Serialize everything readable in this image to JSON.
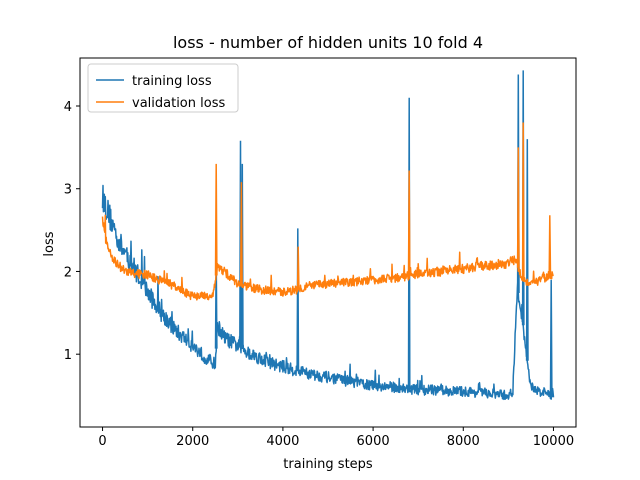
{
  "chart_data": {
    "type": "line",
    "title": "loss - number of hidden units 10 fold 4",
    "xlabel": "training steps",
    "ylabel": "loss",
    "xlim": [
      -500,
      10500
    ],
    "ylim": [
      0.12,
      4.58
    ],
    "xticks": [
      0,
      2000,
      4000,
      6000,
      8000,
      10000
    ],
    "yticks": [
      1,
      2,
      3,
      4
    ],
    "grid": false,
    "legend_position": "top-left",
    "series": [
      {
        "name": "training loss",
        "color": "#1f77b4",
        "noise": 0.09,
        "points": [
          [
            0,
            2.9
          ],
          [
            100,
            2.75
          ],
          [
            300,
            2.45
          ],
          [
            500,
            2.2
          ],
          [
            700,
            2.05
          ],
          [
            1000,
            1.75
          ],
          [
            1300,
            1.5
          ],
          [
            1600,
            1.3
          ],
          [
            2000,
            1.1
          ],
          [
            2300,
            0.95
          ],
          [
            2500,
            0.88
          ],
          [
            2550,
            1.35
          ],
          [
            2700,
            1.2
          ],
          [
            3000,
            1.1
          ],
          [
            3300,
            1.0
          ],
          [
            3700,
            0.9
          ],
          [
            4000,
            0.85
          ],
          [
            4300,
            0.8
          ],
          [
            4700,
            0.75
          ],
          [
            5000,
            0.72
          ],
          [
            5500,
            0.67
          ],
          [
            6000,
            0.62
          ],
          [
            6500,
            0.6
          ],
          [
            6780,
            0.58
          ],
          [
            7000,
            0.57
          ],
          [
            7500,
            0.56
          ],
          [
            8000,
            0.55
          ],
          [
            8500,
            0.53
          ],
          [
            9000,
            0.5
          ],
          [
            9100,
            0.55
          ],
          [
            9200,
            1.8
          ],
          [
            9300,
            1.5
          ],
          [
            9400,
            1.0
          ],
          [
            9500,
            0.6
          ],
          [
            9700,
            0.55
          ],
          [
            10000,
            0.5
          ]
        ],
        "spikes": [
          [
            2520,
            2.2
          ],
          [
            3060,
            3.58
          ],
          [
            3100,
            3.3
          ],
          [
            4330,
            2.52
          ],
          [
            6800,
            4.1
          ],
          [
            9220,
            4.38
          ],
          [
            9330,
            4.43
          ],
          [
            9420,
            3.6
          ],
          [
            9950,
            1.9
          ]
        ]
      },
      {
        "name": "validation loss",
        "color": "#ff7f0e",
        "noise": 0.04,
        "points": [
          [
            0,
            2.65
          ],
          [
            100,
            2.3
          ],
          [
            300,
            2.1
          ],
          [
            500,
            2.0
          ],
          [
            800,
            1.97
          ],
          [
            1000,
            1.95
          ],
          [
            1500,
            1.85
          ],
          [
            1800,
            1.75
          ],
          [
            2000,
            1.7
          ],
          [
            2300,
            1.7
          ],
          [
            2450,
            1.72
          ],
          [
            2550,
            2.05
          ],
          [
            2700,
            2.0
          ],
          [
            3000,
            1.85
          ],
          [
            3200,
            1.82
          ],
          [
            3500,
            1.78
          ],
          [
            4000,
            1.75
          ],
          [
            4300,
            1.78
          ],
          [
            4500,
            1.82
          ],
          [
            5000,
            1.85
          ],
          [
            5500,
            1.87
          ],
          [
            6000,
            1.9
          ],
          [
            6500,
            1.92
          ],
          [
            6800,
            1.95
          ],
          [
            7000,
            1.97
          ],
          [
            7500,
            2.0
          ],
          [
            8000,
            2.03
          ],
          [
            8500,
            2.07
          ],
          [
            9000,
            2.1
          ],
          [
            9150,
            2.15
          ],
          [
            9250,
            2.0
          ],
          [
            9350,
            1.9
          ],
          [
            9500,
            1.85
          ],
          [
            9700,
            1.9
          ],
          [
            10000,
            1.97
          ]
        ],
        "spikes": [
          [
            2520,
            3.3
          ],
          [
            3080,
            3.08
          ],
          [
            4340,
            2.3
          ],
          [
            6800,
            3.22
          ],
          [
            9220,
            3.5
          ],
          [
            9330,
            3.8
          ],
          [
            9920,
            2.68
          ]
        ]
      }
    ]
  }
}
